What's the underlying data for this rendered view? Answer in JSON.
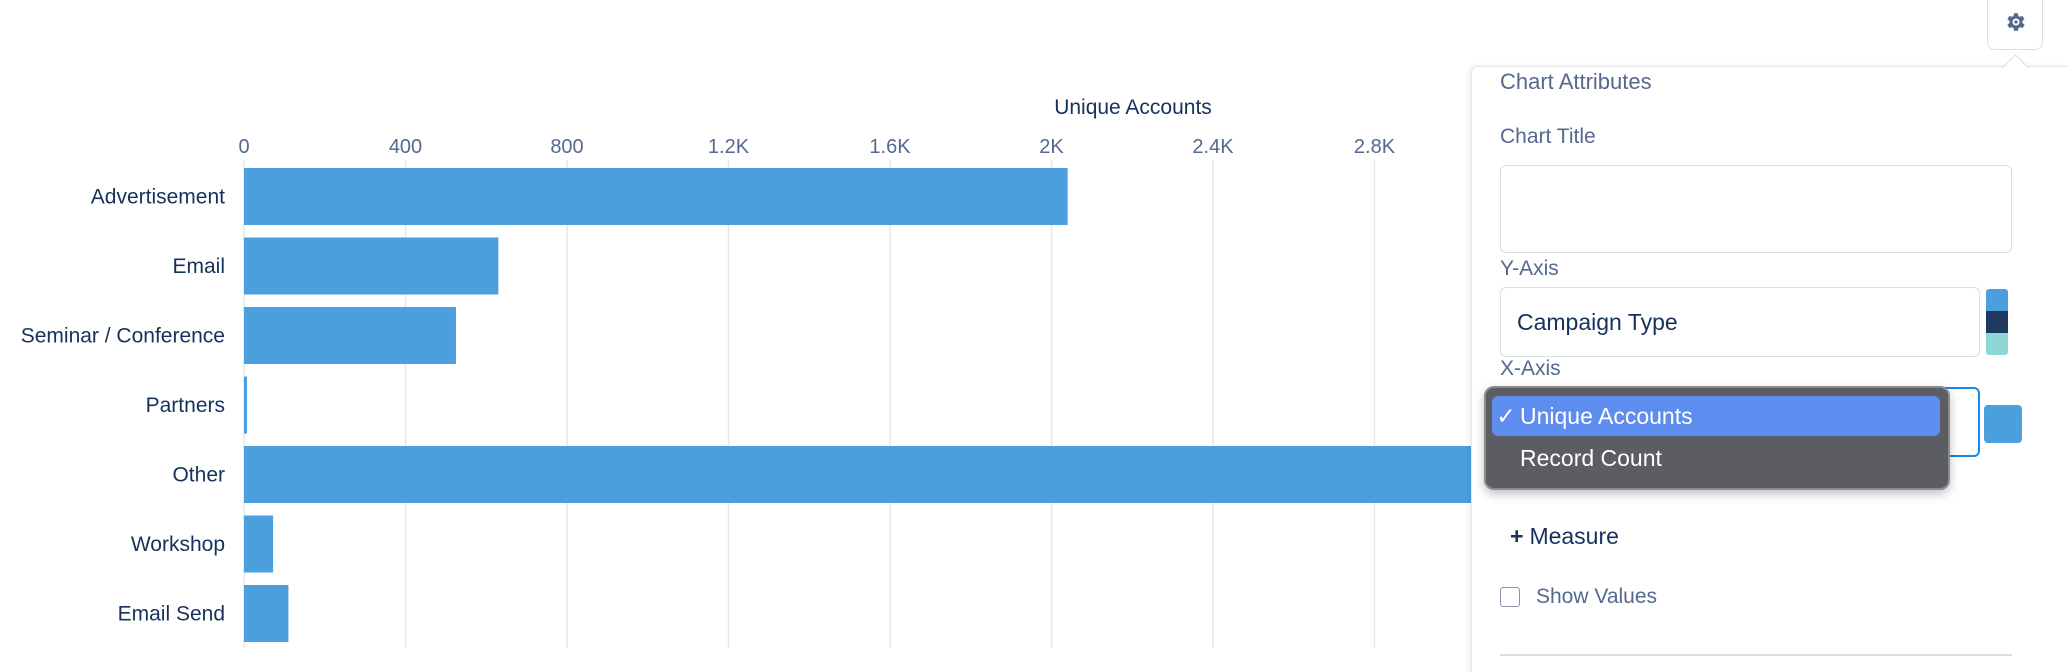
{
  "chart_data": {
    "type": "bar",
    "orientation": "horizontal",
    "xlabel": "Unique Accounts",
    "xlim": [
      0,
      3000
    ],
    "x_ticks": [
      "0",
      "400",
      "800",
      "1.2K",
      "1.6K",
      "2K",
      "2.4K",
      "2.8K"
    ],
    "x_tick_values": [
      0,
      400,
      800,
      1200,
      1600,
      2000,
      2400,
      2800
    ],
    "categories": [
      "Advertisement",
      "Email",
      "Seminar / Conference",
      "Partners",
      "Other",
      "Workshop",
      "Email Send"
    ],
    "values": [
      2040,
      630,
      525,
      6,
      3100,
      72,
      110
    ],
    "bar_color": "#4a9fdc",
    "grid": true
  },
  "panel": {
    "heading": "Chart Attributes",
    "title_label": "Chart Title",
    "title_value": "",
    "y_axis_label": "Y-Axis",
    "y_axis_value": "Campaign Type",
    "y_palette": [
      "#4a9fdc",
      "#1f3a5f",
      "#8dd8d6"
    ],
    "x_axis_label": "X-Axis",
    "x_swatch": "#4a9fdc",
    "add_measure_label": "Measure",
    "show_values_label": "Show Values",
    "show_values_checked": false
  },
  "dropdown": {
    "options": [
      {
        "label": "Unique Accounts",
        "selected": true,
        "check": "✓"
      },
      {
        "label": "Record Count",
        "selected": false,
        "check": ""
      }
    ]
  },
  "gear": {
    "icon": "gear-icon"
  }
}
